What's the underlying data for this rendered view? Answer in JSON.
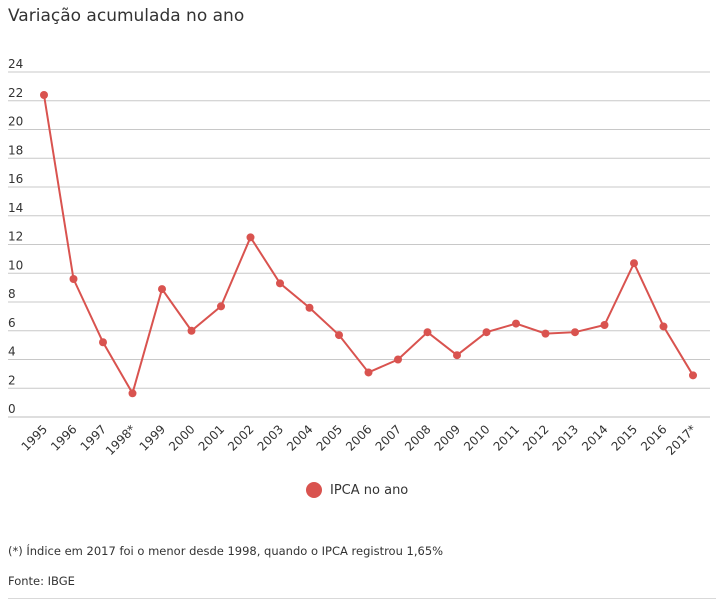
{
  "chart_data": {
    "type": "line",
    "title": "Variação acumulada no ano",
    "xlabel": "",
    "ylabel": "",
    "ylim": [
      0,
      24
    ],
    "yticks": [
      0,
      2,
      4,
      6,
      8,
      10,
      12,
      14,
      16,
      18,
      20,
      22,
      24
    ],
    "categories": [
      "1995",
      "1996",
      "1997",
      "1998*",
      "1999",
      "2000",
      "2001",
      "2002",
      "2003",
      "2004",
      "2005",
      "2006",
      "2007",
      "2008",
      "2009",
      "2010",
      "2011",
      "2012",
      "2013",
      "2014",
      "2015",
      "2016",
      "2017*"
    ],
    "series": [
      {
        "name": "IPCA no ano",
        "color": "#d9534f",
        "values": [
          22.4,
          9.6,
          5.2,
          1.65,
          8.9,
          6.0,
          7.7,
          12.5,
          9.3,
          7.6,
          5.7,
          3.1,
          4.0,
          5.9,
          4.3,
          5.9,
          6.5,
          5.8,
          5.9,
          6.4,
          10.7,
          6.3,
          2.9
        ]
      }
    ],
    "grid": true,
    "legend": "bottom"
  },
  "footnote": "(*) Índice em 2017 foi o menor desde 1998, quando o IPCA registrou 1,65%",
  "source": "Fonte: IBGE"
}
